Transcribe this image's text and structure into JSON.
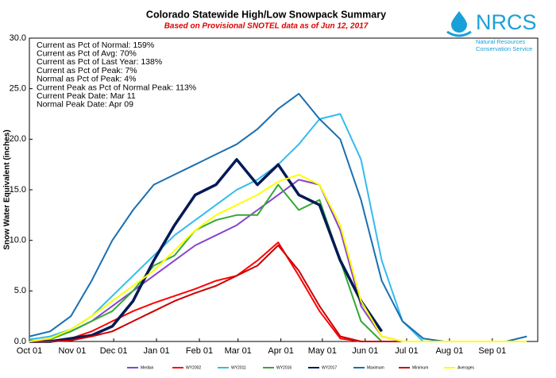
{
  "chart_data": {
    "type": "line",
    "title": "Colorado Statewide High/Low Snowpack Summary",
    "subtitle": "Based on Provisional SNOTEL data as of Jun 12, 2017",
    "y_label": "Snow Water Equivalent (inches)",
    "logo": {
      "name": "NRCS",
      "line1": "Natural Resources",
      "line2": "Conservation Service"
    },
    "annotations": [
      "Current  as Pct of Normal: 159%",
      "Current  as Pct of Avg: 70%",
      "Current  as Pct of Last Year: 138%",
      "Current  as Pct of Peak: 7%",
      "Normal  as Pct of Peak: 4%",
      "Current  Peak as Pct of Normal  Peak: 113%",
      "Current  Peak Date: Mar 11",
      "Normal  Peak Date: Apr 09"
    ],
    "x": [
      0,
      15,
      30,
      45,
      60,
      75,
      90,
      105,
      120,
      135,
      150,
      165,
      180,
      195,
      210,
      225,
      240,
      255,
      270,
      285,
      300,
      315,
      330,
      345,
      360
    ],
    "xlim": [
      0,
      365
    ],
    "xticks": [
      {
        "value": 0,
        "label": "Oct 01"
      },
      {
        "value": 31,
        "label": "Nov 01"
      },
      {
        "value": 61,
        "label": "Dec 01"
      },
      {
        "value": 92,
        "label": "Jan 01"
      },
      {
        "value": 123,
        "label": "Feb 01"
      },
      {
        "value": 151,
        "label": "Mar 01"
      },
      {
        "value": 182,
        "label": "Apr 01"
      },
      {
        "value": 212,
        "label": "May 01"
      },
      {
        "value": 243,
        "label": "Jun 01"
      },
      {
        "value": 273,
        "label": "Jul 01"
      },
      {
        "value": 304,
        "label": "Aug 01"
      },
      {
        "value": 335,
        "label": "Sep 01"
      }
    ],
    "ylim": [
      0,
      30
    ],
    "yticks": [
      {
        "value": 0,
        "label": "0.0"
      },
      {
        "value": 5,
        "label": "5.0"
      },
      {
        "value": 10,
        "label": "10.0"
      },
      {
        "value": 15,
        "label": "15.0"
      },
      {
        "value": 20,
        "label": "20.0"
      },
      {
        "value": 25,
        "label": "25.0"
      },
      {
        "value": 30,
        "label": "30.0"
      }
    ],
    "grid": false,
    "series": [
      {
        "name": "Median",
        "color": "#8844cc",
        "values": [
          0,
          0.3,
          1,
          2,
          3.5,
          5,
          6.5,
          8,
          9.5,
          10.5,
          11.5,
          13,
          14.5,
          16,
          15.5,
          11,
          3.5,
          0.5,
          0,
          0,
          0,
          0,
          0,
          0,
          0
        ]
      },
      {
        "name": "WY2002",
        "color": "#ff0000",
        "values": [
          0,
          0,
          0.3,
          1,
          2,
          3,
          3.8,
          4.5,
          5.2,
          6,
          6.5,
          8,
          9.8,
          6.5,
          3,
          0.3,
          0,
          0,
          0,
          0,
          0,
          0,
          0,
          0,
          0
        ]
      },
      {
        "name": "WY2011",
        "color": "#33bbee",
        "values": [
          0.2,
          0.5,
          1.2,
          2.5,
          4.5,
          6.5,
          8.5,
          10.5,
          12,
          13.5,
          15,
          16,
          17.5,
          19.5,
          22,
          22.5,
          18,
          8,
          2,
          0,
          0,
          0,
          0,
          0,
          0
        ]
      },
      {
        "name": "WY2016",
        "color": "#33aa33",
        "values": [
          0,
          0.2,
          1,
          2,
          3,
          5,
          7.5,
          8.5,
          11,
          12,
          12.5,
          12.5,
          15.5,
          13,
          14,
          8,
          2,
          0,
          0,
          0,
          0,
          0,
          0,
          0,
          0
        ]
      },
      {
        "name": "WY2017",
        "color": "#001a55",
        "values": [
          0,
          0,
          0.3,
          0.6,
          1.5,
          4,
          8,
          11.5,
          14.5,
          15.5,
          18,
          15.5,
          17.5,
          14.5,
          13.5,
          8,
          4,
          1,
          null,
          null,
          null,
          null,
          null,
          null,
          null
        ]
      },
      {
        "name": "Maximum",
        "color": "#1a6fb0",
        "values": [
          0.5,
          1,
          2.5,
          6,
          10,
          13,
          15.5,
          16.5,
          17.5,
          18.5,
          19.5,
          21,
          23,
          24.5,
          22,
          20,
          14,
          6,
          2,
          0.3,
          0,
          0,
          0,
          0,
          0.5
        ]
      },
      {
        "name": "Minimum",
        "color": "#cc0000",
        "values": [
          0,
          0,
          0.1,
          0.5,
          1,
          2,
          3,
          4,
          4.8,
          5.5,
          6.5,
          7.5,
          9.5,
          7,
          3.5,
          0.5,
          0,
          0,
          0,
          0,
          0,
          0,
          0,
          0,
          0
        ]
      },
      {
        "name": "Averages",
        "color": "#ffff00",
        "values": [
          0,
          0.3,
          1.2,
          2.5,
          4,
          5.5,
          7,
          9,
          11,
          12.5,
          13.5,
          14.5,
          15.8,
          16.5,
          15.5,
          11.5,
          4,
          0.5,
          0,
          0,
          0,
          0,
          0,
          0,
          0
        ]
      }
    ]
  }
}
